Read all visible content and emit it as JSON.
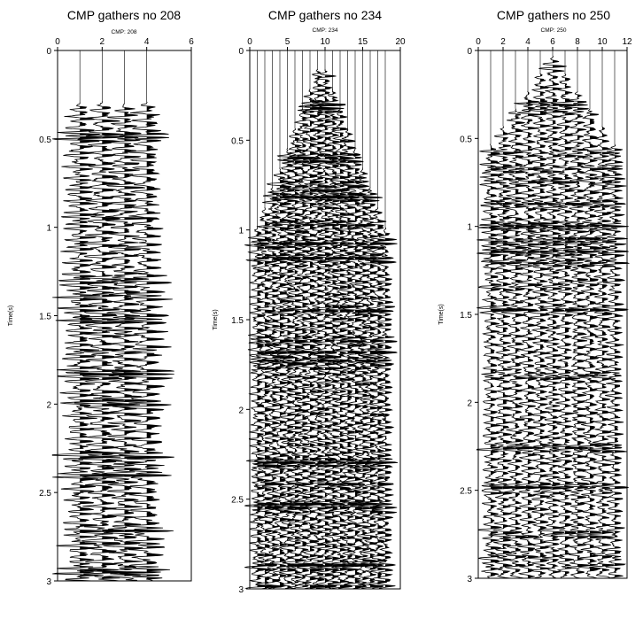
{
  "chart_data": [
    {
      "type": "seismic-wiggle",
      "title": "CMP gathers no 208",
      "subtitle": "CMP: 208",
      "xlabel": "",
      "ylabel": "Time(s)",
      "xlim": [
        0,
        6
      ],
      "xticks": [
        0,
        2,
        4,
        6
      ],
      "ylim": [
        0,
        3
      ],
      "yticks": [
        0,
        0.5,
        1,
        1.5,
        2,
        2.5,
        3
      ],
      "ytick_labels": [
        "0",
        "0.5",
        "1",
        "1.5",
        "2",
        "2.5",
        "3"
      ],
      "trace_offsets": [
        1,
        2,
        3,
        4
      ],
      "first_break_time": 0.28,
      "amplitude": 1.1,
      "seed": 208
    },
    {
      "type": "seismic-wiggle",
      "title": "CMP gathers no 234",
      "subtitle": "CMP: 234",
      "xlabel": "",
      "ylabel": "Time(s)",
      "xlim": [
        0,
        20
      ],
      "xticks": [
        0,
        5,
        10,
        15,
        20
      ],
      "ylim": [
        0,
        3
      ],
      "yticks": [
        0,
        0.5,
        1,
        1.5,
        2,
        2.5,
        3
      ],
      "ytick_labels": [
        "0",
        "0.5",
        "1",
        "1.5",
        "2",
        "2.5",
        "3"
      ],
      "trace_offsets": [
        1,
        2,
        3,
        4,
        5,
        6,
        7,
        8,
        9,
        10,
        11,
        12,
        13,
        14,
        15,
        16,
        17,
        18
      ],
      "first_break_apex": 0.05,
      "first_break_center": 9.5,
      "first_break_slope": 0.11,
      "amplitude": 1.5,
      "seed": 234
    },
    {
      "type": "seismic-wiggle",
      "title": "CMP gathers no 250",
      "subtitle": "CMP: 250",
      "xlabel": "",
      "ylabel": "Time(s)",
      "xlim": [
        0,
        12
      ],
      "xticks": [
        0,
        2,
        4,
        6,
        8,
        10,
        12
      ],
      "ylim": [
        0,
        3
      ],
      "yticks": [
        0,
        0.5,
        1,
        1.5,
        2,
        2.5,
        3
      ],
      "ytick_labels": [
        "0",
        "0.5",
        "1",
        "1.5",
        "2",
        "2.5",
        "3"
      ],
      "trace_offsets": [
        1,
        2,
        3,
        4,
        5,
        6,
        7,
        8,
        9,
        10,
        11
      ],
      "first_break_apex": 0.03,
      "first_break_center": 6,
      "first_break_slope": 0.1,
      "amplitude": 1.0,
      "seed": 250
    }
  ]
}
